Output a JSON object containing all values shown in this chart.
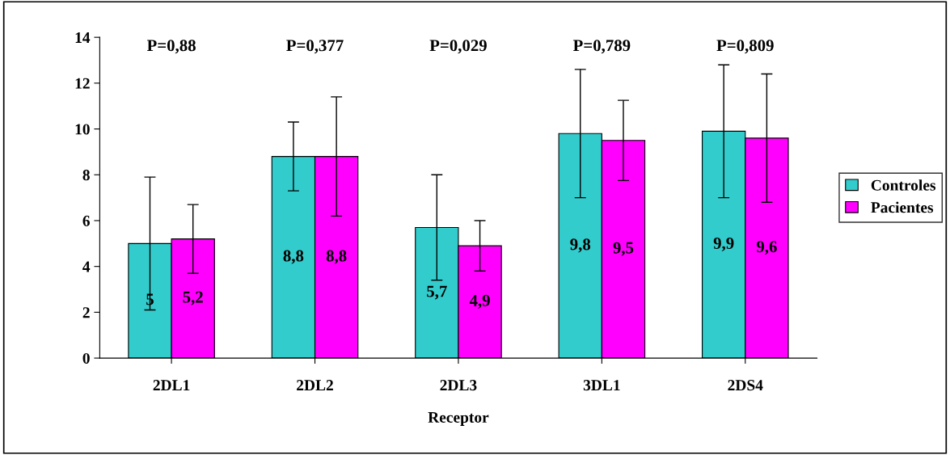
{
  "chart_data": {
    "type": "bar",
    "xlabel": "Receptor",
    "categories": [
      "2DL1",
      "2DL2",
      "2DL3",
      "3DL1",
      "2DS4"
    ],
    "series": [
      {
        "name": "Controles",
        "color": "#33cccc",
        "values": [
          5,
          8.8,
          5.7,
          9.8,
          9.9
        ],
        "value_labels": [
          "5",
          "8,8",
          "5,7",
          "9,8",
          "9,9"
        ],
        "errors": [
          2.9,
          1.5,
          2.3,
          2.8,
          2.9
        ]
      },
      {
        "name": "Pacientes",
        "color": "#ff00ff",
        "values": [
          5.2,
          8.8,
          4.9,
          9.5,
          9.6
        ],
        "value_labels": [
          "5,2",
          "8,8",
          "4,9",
          "9,5",
          "9,6"
        ],
        "errors": [
          1.5,
          2.6,
          1.1,
          1.75,
          2.8
        ]
      }
    ],
    "annotations": [
      "P=0,88",
      "P=0,377",
      "P=0,029",
      "P=0,789",
      "P=0,809"
    ],
    "ylim": [
      0,
      14
    ],
    "yticks": [
      0,
      2,
      4,
      6,
      8,
      10,
      12,
      14
    ],
    "grid": false,
    "legend": "right"
  }
}
